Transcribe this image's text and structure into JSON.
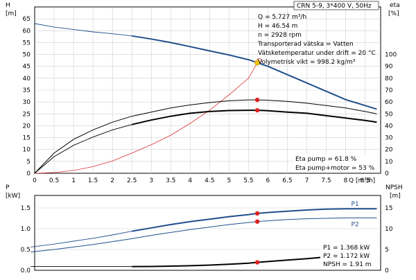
{
  "chart_data": [
    {
      "type": "line",
      "panel": "top",
      "header": "CRN 5-9, 3*400 V, 50Hz",
      "xlabel": "Q [m³/h]",
      "ylabel_left_name": "H",
      "ylabel_left_unit": "[m]",
      "ylabel_right_name": "eta",
      "ylabel_right_unit": "[%]",
      "xlim": [
        0,
        8.9
      ],
      "ylim_left": [
        0,
        70
      ],
      "ylim_right": [
        0,
        140
      ],
      "x_ticks": [
        "0",
        "0.5",
        "1",
        "1.5",
        "2",
        "2.5",
        "3",
        "3.5",
        "4",
        "4.5",
        "5",
        "5.5",
        "6",
        "6.5",
        "7",
        "7.5",
        "8",
        "8.5"
      ],
      "y_ticks_left": [
        "0",
        "5",
        "10",
        "15",
        "20",
        "25",
        "30",
        "35",
        "40",
        "45",
        "50",
        "55",
        "60",
        "65"
      ],
      "y_ticks_right": [
        "0",
        "10",
        "20",
        "30",
        "40",
        "50",
        "60",
        "70",
        "80",
        "90",
        "100"
      ],
      "grid": true,
      "info_lines": [
        "Q = 5.727 m³/h",
        "H = 46.54 m",
        "n = 2928 rpm",
        "Transporterad vätska = Vatten",
        "Vätsketemperatur under drift = 20 °C",
        "Volymetrisk vikt = 998.2 kg/m³"
      ],
      "eta_lines": [
        "Eta pump = 61.8 %",
        "Eta pump+motor = 53 %"
      ],
      "colors": {
        "head": "#1f4e8c",
        "system": "#e03030",
        "eta": "#000000",
        "marker": "#e02020",
        "operating_point": "#f2c40f"
      },
      "series": [
        {
          "key": "head",
          "axis": "left",
          "dashed_until": 2.5,
          "x": [
            0,
            0.5,
            1,
            1.5,
            2,
            2.5,
            3,
            3.5,
            4,
            4.5,
            5,
            5.5,
            6,
            6.5,
            7,
            7.5,
            8,
            8.5,
            8.8
          ],
          "y": [
            63,
            61.5,
            60.5,
            59.5,
            58.7,
            57.8,
            56.5,
            55,
            53.3,
            51.5,
            49.8,
            47.8,
            45,
            41.5,
            38,
            34.5,
            31,
            28.5,
            27
          ]
        },
        {
          "key": "system",
          "axis": "left",
          "x": [
            0,
            0.5,
            1,
            1.5,
            2,
            2.5,
            3,
            3.5,
            4,
            4.5,
            5,
            5.5,
            5.727
          ],
          "y": [
            0,
            0.3,
            1.2,
            2.8,
            5.2,
            8.5,
            12,
            16,
            21,
            26.5,
            33,
            40,
            46.5
          ]
        },
        {
          "key": "eta_pump",
          "axis": "right",
          "x": [
            0,
            0.5,
            1,
            1.5,
            2,
            2.5,
            3,
            3.5,
            4,
            4.5,
            5,
            5.5,
            5.727,
            6,
            6.5,
            7,
            7.5,
            8,
            8.5,
            8.8
          ],
          "y": [
            0,
            17,
            28.5,
            36.5,
            43,
            48,
            51.5,
            55,
            57.5,
            59.5,
            61,
            61.8,
            61.8,
            61.5,
            60.5,
            59,
            57,
            55,
            52,
            50
          ]
        },
        {
          "key": "eta_pump_motor",
          "axis": "right",
          "dashed_until": 2.5,
          "x": [
            0,
            0.5,
            1,
            1.5,
            2,
            2.5,
            3,
            3.5,
            4,
            4.5,
            5,
            5.5,
            5.727,
            6,
            6.5,
            7,
            7.5,
            8,
            8.5,
            8.8
          ],
          "y": [
            0,
            14,
            23.5,
            30.5,
            36.5,
            41,
            44.8,
            48,
            50.5,
            52,
            52.8,
            53,
            53,
            52.7,
            51.5,
            50.5,
            48.5,
            46.5,
            44.5,
            43
          ]
        }
      ],
      "markers": [
        {
          "series": "eta_pump",
          "x": 5.727,
          "y": 61.8
        },
        {
          "series": "eta_pump_motor",
          "x": 5.727,
          "y": 53
        }
      ],
      "operating_point": {
        "x": 5.727,
        "y": 46.54
      }
    },
    {
      "type": "line",
      "panel": "bottom",
      "ylabel_left_name": "P",
      "ylabel_left_unit": "[kW]",
      "ylabel_right_name": "NPSH",
      "ylabel_right_unit": "[m]",
      "xlim": [
        0,
        8.9
      ],
      "ylim_left": [
        0,
        1.8
      ],
      "ylim_right": [
        0,
        18
      ],
      "y_ticks_left": [
        "0.0",
        "0.5",
        "1.0",
        "1.5"
      ],
      "y_ticks_right": [
        "0",
        "5",
        "10",
        "15"
      ],
      "grid": true,
      "info_lines": [
        "P1 = 1.368 kW",
        "P2 = 1.172 kW",
        "NPSH = 1.91 m"
      ],
      "colors": {
        "p1": "#1f4e8c",
        "p2": "#1f4e8c",
        "npsh": "#000000",
        "marker": "#e02020"
      },
      "series": [
        {
          "name": "P1",
          "key": "p1",
          "axis": "left",
          "dashed_until": 2.5,
          "x": [
            -0.1,
            0.5,
            1,
            1.5,
            2,
            2.5,
            3,
            3.5,
            4,
            4.5,
            5,
            5.5,
            5.727,
            6,
            6.5,
            7,
            7.5,
            8,
            8.5,
            8.8
          ],
          "y": [
            0.56,
            0.63,
            0.7,
            0.77,
            0.85,
            0.94,
            1.02,
            1.1,
            1.17,
            1.23,
            1.29,
            1.34,
            1.368,
            1.39,
            1.42,
            1.45,
            1.47,
            1.48,
            1.48,
            1.48
          ]
        },
        {
          "name": "P2",
          "key": "p2",
          "axis": "left",
          "x": [
            -0.1,
            0.5,
            1,
            1.5,
            2,
            2.5,
            3,
            3.5,
            4,
            4.5,
            5,
            5.5,
            5.727,
            6,
            6.5,
            7,
            7.5,
            8,
            8.5,
            8.8
          ],
          "y": [
            0.44,
            0.5,
            0.56,
            0.62,
            0.69,
            0.76,
            0.84,
            0.91,
            0.98,
            1.04,
            1.1,
            1.15,
            1.172,
            1.19,
            1.22,
            1.24,
            1.25,
            1.26,
            1.26,
            1.26
          ]
        },
        {
          "key": "npsh",
          "axis": "right",
          "dashed_until": 2.5,
          "x": [
            -0.1,
            0.5,
            1,
            1.5,
            2,
            2.5,
            3,
            3.5,
            4,
            4.5,
            5,
            5.5,
            5.727,
            6,
            6.5,
            7,
            7.5,
            8,
            8.3
          ],
          "y": [
            0.9,
            0.9,
            0.9,
            0.9,
            0.9,
            0.9,
            0.92,
            1.0,
            1.1,
            1.25,
            1.45,
            1.7,
            1.91,
            2.1,
            2.45,
            2.8,
            3.2,
            3.6,
            3.85
          ]
        }
      ],
      "markers": [
        {
          "series": "p1",
          "x": 5.727,
          "y": 1.368
        },
        {
          "series": "p2",
          "x": 5.727,
          "y": 1.172
        },
        {
          "series": "npsh",
          "x": 5.727,
          "y": 1.91
        }
      ],
      "series_labels": [
        {
          "text": "P1",
          "x": 8.0,
          "y": 1.48
        },
        {
          "text": "P2",
          "x": 8.0,
          "y": 1.26
        }
      ]
    }
  ]
}
